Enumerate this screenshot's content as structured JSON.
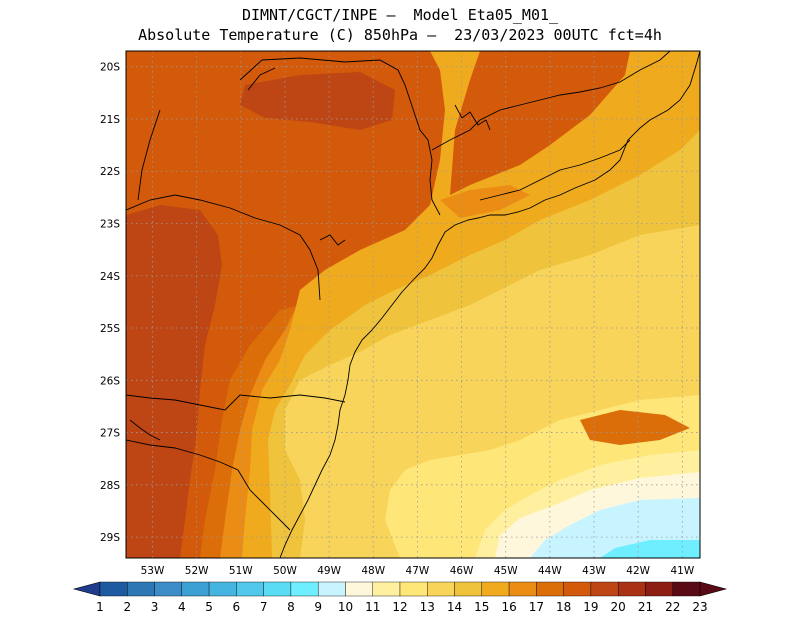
{
  "title": {
    "line1": "DIMNT/CGCT/INPE —  Model Eta05_M01_",
    "line2": "Absolute Temperature (C) 850hPa —  23/03/2023 00UTC fct=4h"
  },
  "map": {
    "variable": "Absolute Temperature (C)",
    "level": "850hPa",
    "lat_labels": [
      "20S",
      "21S",
      "22S",
      "23S",
      "24S",
      "25S",
      "26S",
      "27S",
      "28S",
      "29S"
    ],
    "lon_labels": [
      "53W",
      "52W",
      "51W",
      "50W",
      "49W",
      "48W",
      "47W",
      "46W",
      "45W",
      "44W",
      "43W",
      "42W",
      "41W"
    ],
    "lon_range": [
      -53.6,
      -40.6
    ],
    "lat_range": [
      -29.4,
      -19.7
    ]
  },
  "colorbar": {
    "labels": [
      "1",
      "2",
      "3",
      "4",
      "5",
      "6",
      "7",
      "8",
      "9",
      "10",
      "11",
      "12",
      "13",
      "14",
      "15",
      "16",
      "17",
      "18",
      "19",
      "20",
      "21",
      "22",
      "23"
    ],
    "colors": [
      "#1e3c8c",
      "#1e5aa0",
      "#2d78b4",
      "#3c8cc8",
      "#3ca0d2",
      "#46b4e1",
      "#50c8ec",
      "#5adcf5",
      "#6eeeff",
      "#c8f4ff",
      "#fff7dc",
      "#fff0a0",
      "#ffe678",
      "#f8d45a",
      "#f0c33c",
      "#f0aa1e",
      "#eb8c14",
      "#dc6e0a",
      "#d25a0a",
      "#be4614",
      "#aa3214",
      "#8c1e14",
      "#5a0a14"
    ]
  },
  "field_colors": {
    "t10": "#c8f4ff",
    "t11": "#fff7dc",
    "t12": "#fff0a0",
    "t13": "#ffe678",
    "t14": "#f8d45a",
    "t15": "#f0c33c",
    "t16": "#f0aa1e",
    "t17": "#eb8c14",
    "t18": "#dc6e0a",
    "t19": "#d25a0a",
    "t20": "#be4614",
    "t9": "#6eeeff"
  }
}
